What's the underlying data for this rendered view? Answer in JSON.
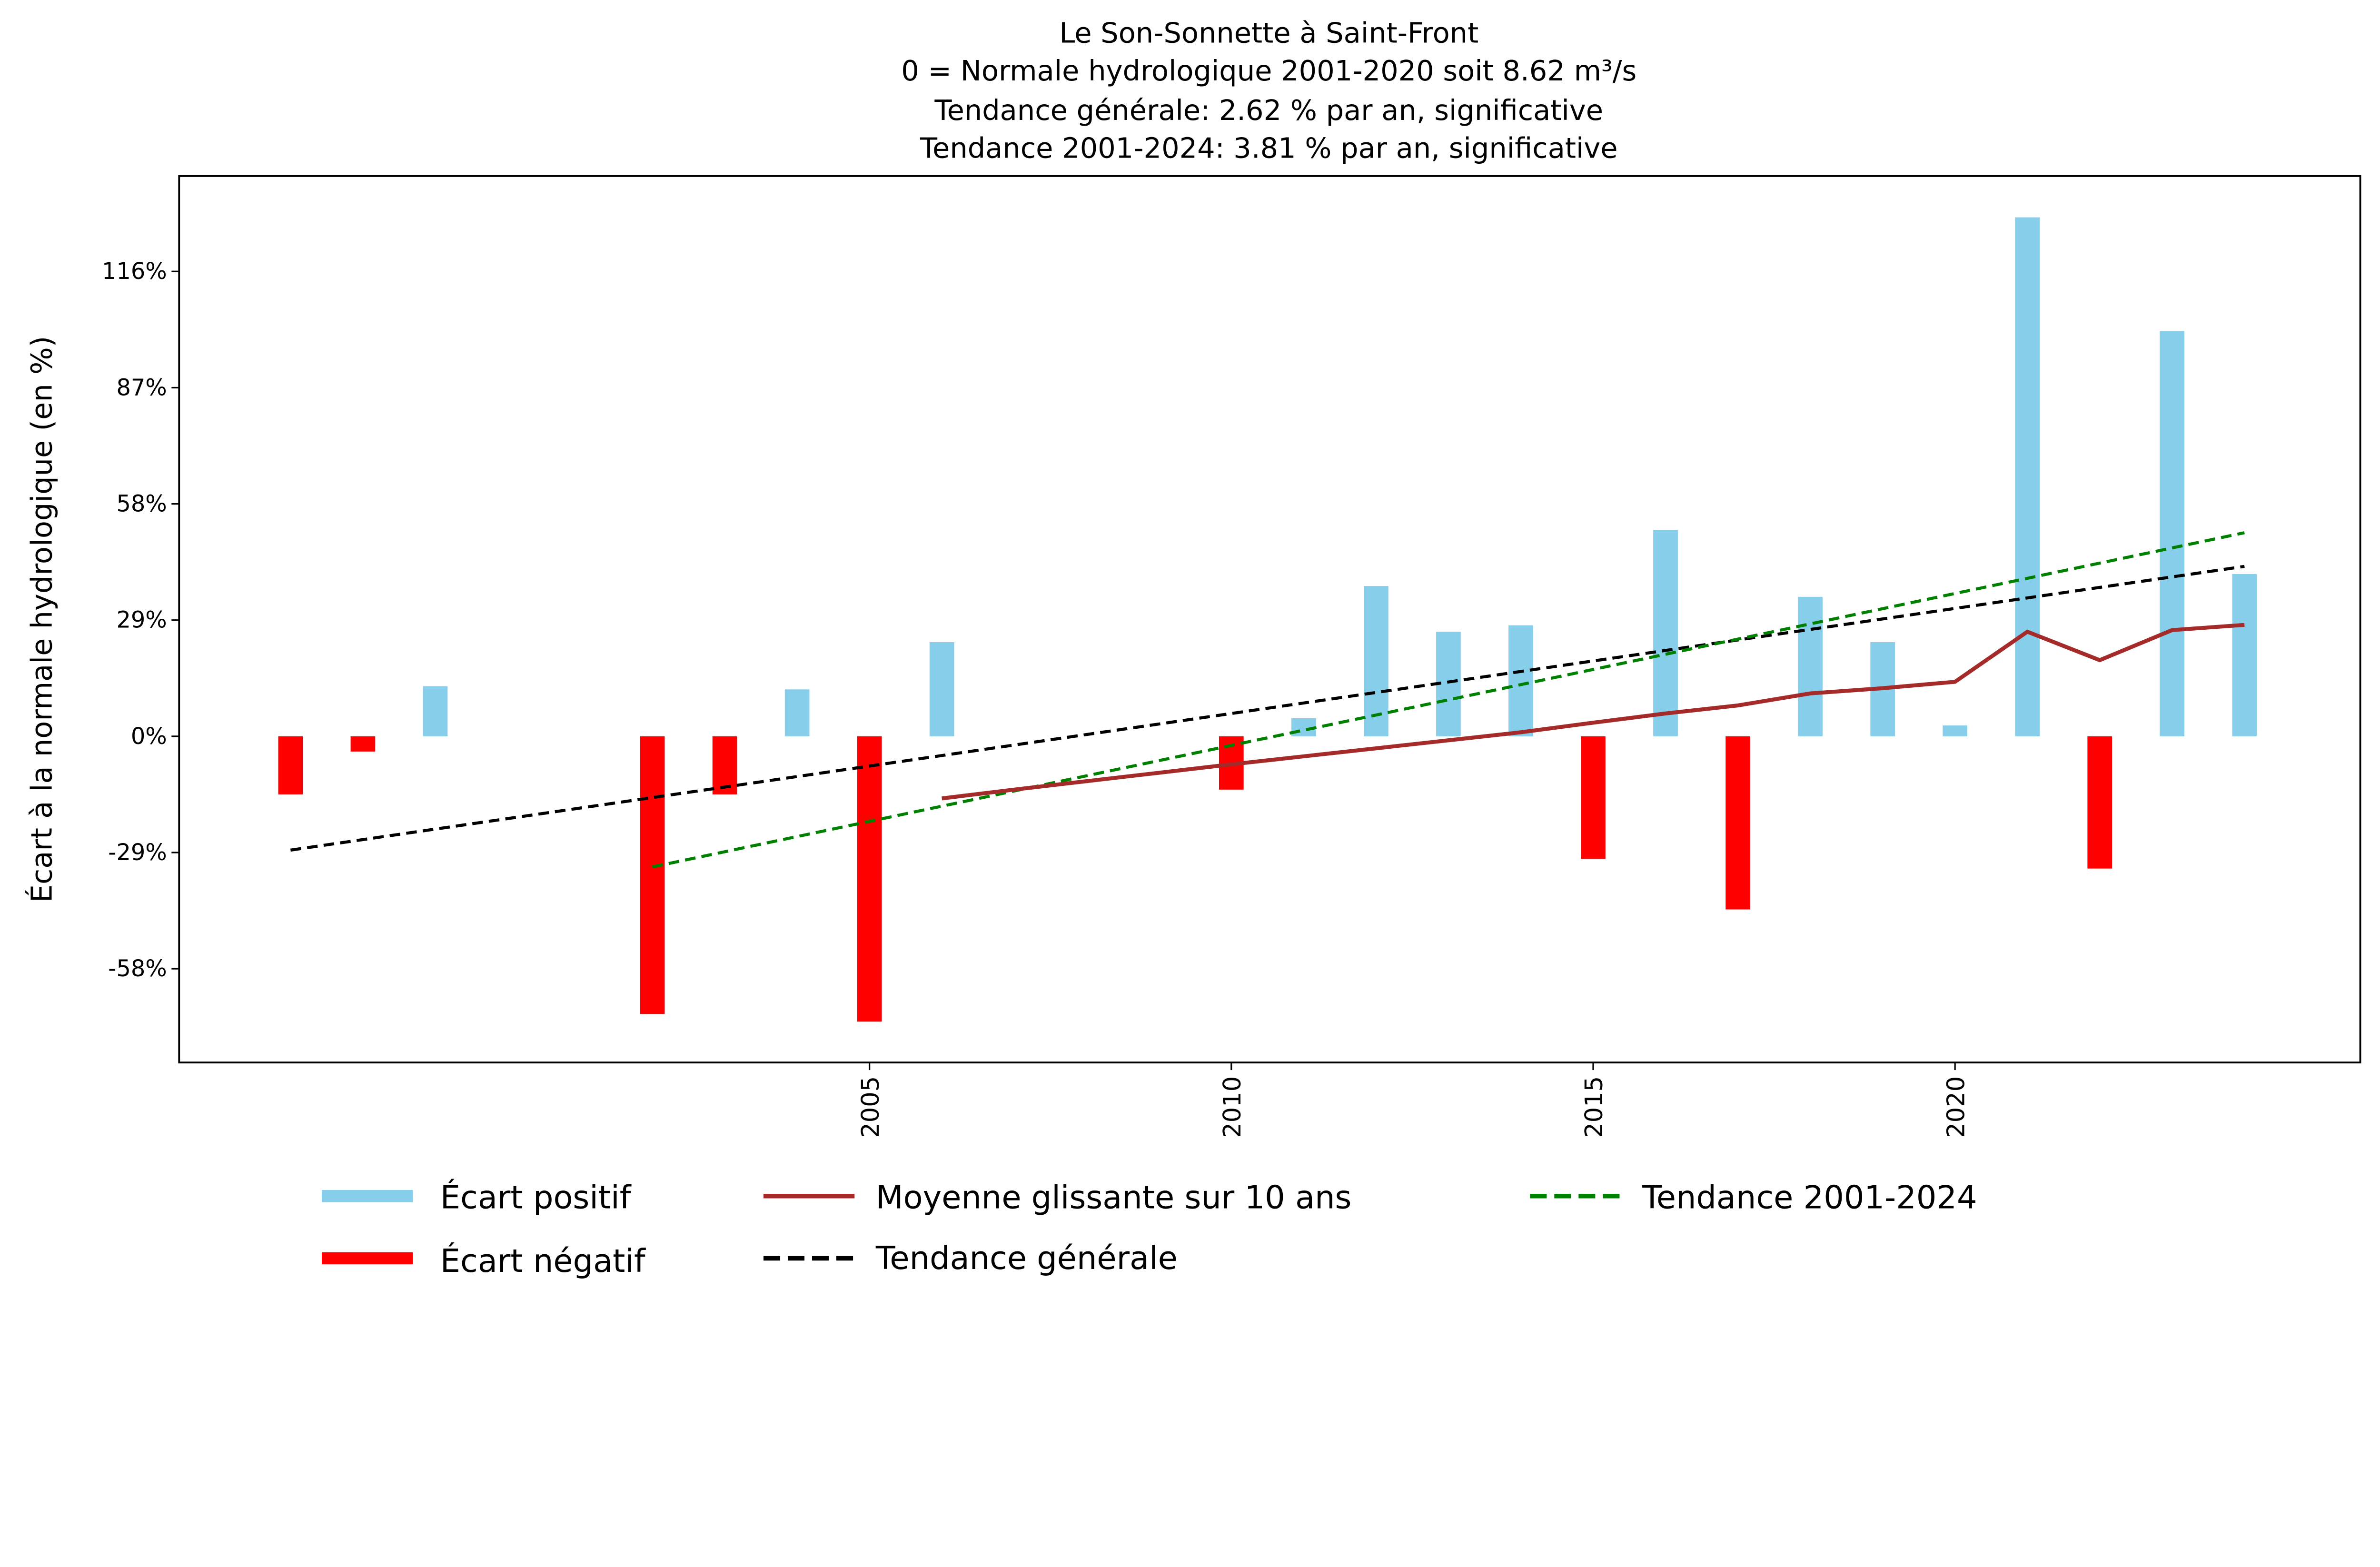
{
  "chart_data": {
    "type": "bar",
    "title_lines": [
      "Le Son-Sonnette à Saint-Front",
      "0 = Normale hydrologique 2001-2020 soit 8.62 m³/s",
      "Tendance générale: 2.62 % par an, significative",
      "Tendance 2001-2024: 3.81 % par an, significative"
    ],
    "xlabel": "",
    "ylabel": "Écart à la normale hydrologique (en %)",
    "xlim": [
      1995.46,
      2025.6
    ],
    "ylim": [
      -81.4,
      139.8
    ],
    "xticks": [
      2005,
      2010,
      2015,
      2020
    ],
    "yticks": [
      -58,
      -29,
      0,
      29,
      58,
      87,
      116
    ],
    "ytick_labels": [
      "-58%",
      "-29%",
      "0%",
      "29%",
      "58%",
      "87%",
      "116%"
    ],
    "grid": false,
    "years": [
      1997,
      1998,
      1999,
      2002,
      2003,
      2004,
      2005,
      2006,
      2010,
      2011,
      2012,
      2013,
      2014,
      2015,
      2016,
      2017,
      2018,
      2019,
      2020,
      2021,
      2022,
      2023,
      2024
    ],
    "values": [
      -14.5,
      -3.8,
      12.5,
      -69.3,
      -14.5,
      11.7,
      -71.2,
      23.5,
      -13.3,
      4.5,
      37.5,
      26.1,
      27.7,
      -30.6,
      51.5,
      -43.2,
      34.8,
      23.5,
      2.7,
      129.5,
      -33.0,
      101.1,
      40.5
    ],
    "colors": {
      "positive": "#87ceeb",
      "negative": "#ff0000",
      "moving_avg": "#a52a2a",
      "trend_general": "#000000",
      "trend_2001": "#008000"
    },
    "moving_average": {
      "name": "Moyenne glissante sur 10 ans",
      "x": [
        2006,
        2007,
        2008,
        2009,
        2010,
        2011,
        2012,
        2013,
        2014,
        2015,
        2016,
        2017,
        2018,
        2019,
        2020,
        2021,
        2022,
        2023,
        2024
      ],
      "y": [
        -15.5,
        -13.3,
        -11.2,
        -9.1,
        -7.0,
        -5.0,
        -3.0,
        -1.0,
        1.0,
        3.4,
        5.7,
        7.7,
        10.7,
        12.0,
        13.6,
        26.1,
        19.0,
        26.5,
        27.8
      ]
    },
    "trend_general": {
      "name": "Tendance générale",
      "x": [
        1997,
        2024
      ],
      "y": [
        -28.4,
        42.4
      ]
    },
    "trend_2001": {
      "name": "Tendance 2001-2024",
      "x": [
        2002,
        2024
      ],
      "y": [
        -32.6,
        50.8
      ]
    },
    "legend": {
      "placement": "bottom-center",
      "entries": [
        "Écart positif",
        "Écart négatif",
        "Moyenne glissante sur 10 ans",
        "Tendance générale",
        "Tendance 2001-2024"
      ]
    }
  }
}
